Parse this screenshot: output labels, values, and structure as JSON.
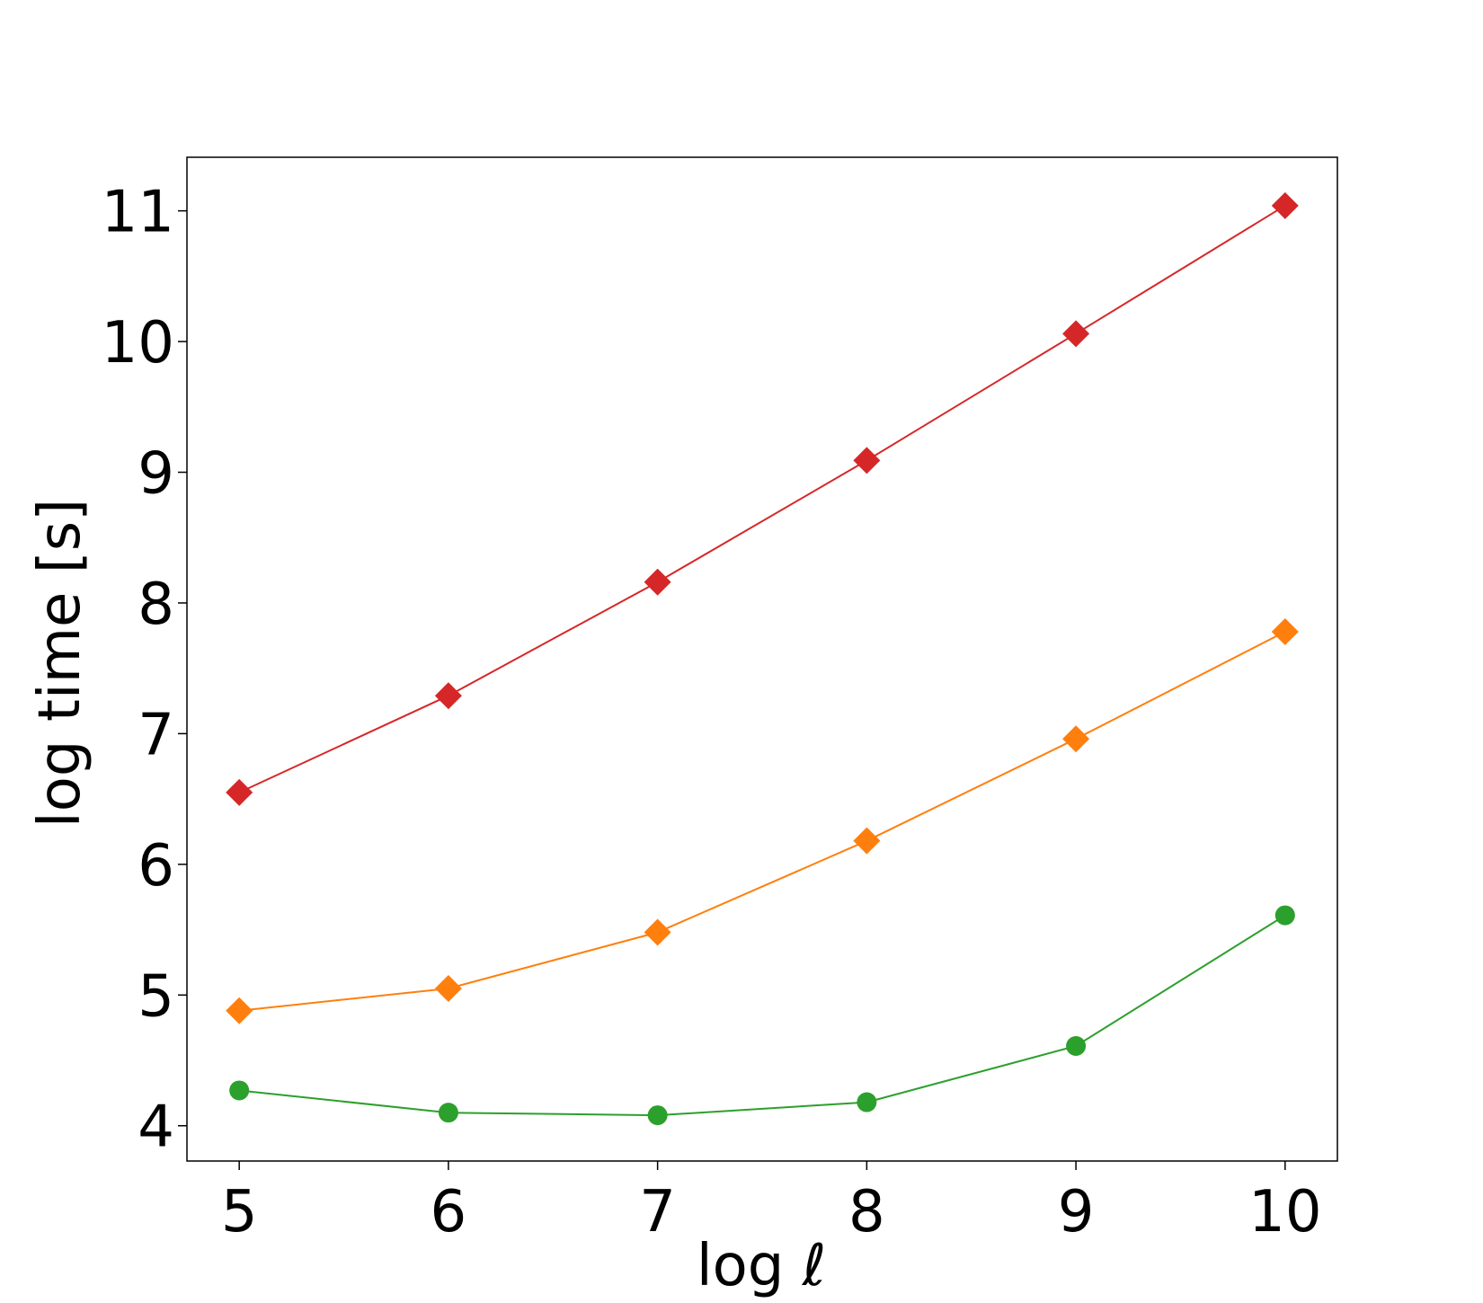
{
  "chart_data": {
    "type": "line",
    "title": "",
    "xlabel": "log ℓ",
    "ylabel": "log time [s]",
    "xlim": [
      4.75,
      10.25
    ],
    "ylim": [
      3.73,
      11.41
    ],
    "x_ticks": [
      5,
      6,
      7,
      8,
      9,
      10
    ],
    "y_ticks": [
      4,
      5,
      6,
      7,
      8,
      9,
      10,
      11
    ],
    "grid": false,
    "legend": "none",
    "series": [
      {
        "color": "#d62728",
        "marker": "diamond",
        "x": [
          5,
          6,
          7,
          8,
          9,
          10
        ],
        "y": [
          6.55,
          7.29,
          8.16,
          9.09,
          10.06,
          11.04
        ]
      },
      {
        "color": "#ff7f0e",
        "marker": "diamond",
        "x": [
          5,
          6,
          7,
          8,
          9,
          10
        ],
        "y": [
          4.88,
          5.05,
          5.48,
          6.18,
          6.96,
          7.78
        ]
      },
      {
        "color": "#2ca02c",
        "marker": "circle",
        "x": [
          5,
          6,
          7,
          8,
          9,
          10
        ],
        "y": [
          4.27,
          4.1,
          4.08,
          4.18,
          4.61,
          5.61
        ]
      }
    ]
  }
}
